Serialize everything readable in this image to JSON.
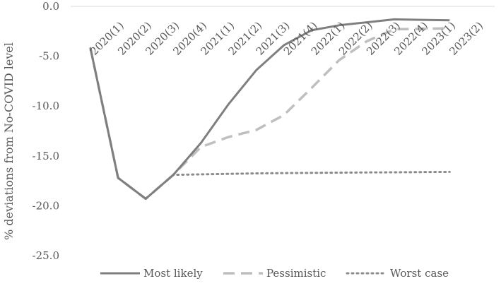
{
  "chart_data": {
    "type": "line",
    "title": "",
    "xlabel": "",
    "ylabel": "% deviations from No-COVID level",
    "ylim": [
      -25,
      0
    ],
    "yticks": [
      "0.0",
      "-5.0",
      "-10.0",
      "-15.0",
      "-20.0",
      "-25.0"
    ],
    "ytick_values": [
      0,
      -5,
      -10,
      -15,
      -20,
      -25
    ],
    "categories": [
      "2020(1)",
      "2020(2)",
      "2020(3)",
      "2020(4)",
      "2021(1)",
      "2021(2)",
      "2021(3)",
      "2021(4)",
      "2022(1)",
      "2022(2)",
      "2022(3)",
      "2022(4)",
      "2023(1)",
      "2023(2)"
    ],
    "grid": false,
    "legend_position": "bottom",
    "series": [
      {
        "name": "Most likely",
        "style": "solid",
        "color": "#7f7f7f",
        "values": [
          -4.2,
          -17.2,
          -19.3,
          -16.9,
          -13.7,
          -9.8,
          -6.4,
          -3.9,
          -2.4,
          -1.9,
          -1.6,
          -1.3,
          -1.35,
          -1.4
        ]
      },
      {
        "name": "Pessimistic",
        "style": "dashed",
        "color": "#bfbfbf",
        "values": [
          -4.2,
          -17.2,
          -19.3,
          -16.9,
          -14.1,
          -13.1,
          -12.4,
          -10.9,
          -8.2,
          -5.4,
          -3.5,
          -2.3,
          -2.25,
          -2.2
        ]
      },
      {
        "name": "Worst case",
        "style": "dotted",
        "color": "#8c8c8c",
        "values": [
          -4.2,
          -17.2,
          -19.3,
          -16.9,
          -16.85,
          -16.8,
          -16.75,
          -16.72,
          -16.7,
          -16.68,
          -16.66,
          -16.64,
          -16.62,
          -16.6
        ]
      }
    ]
  }
}
